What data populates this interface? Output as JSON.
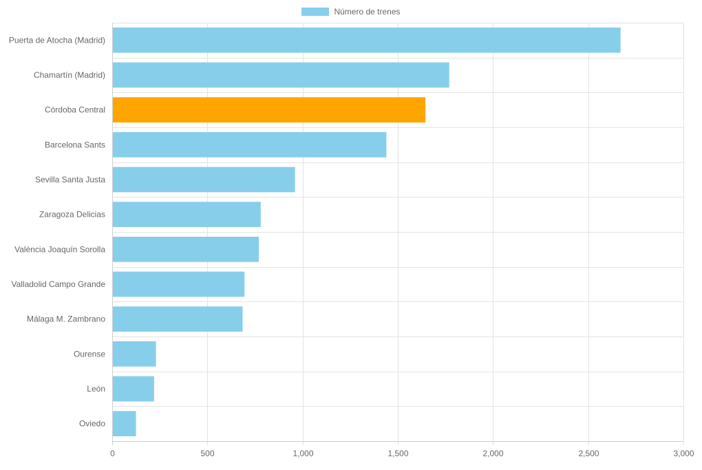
{
  "legend": {
    "label": "Número de trenes",
    "color": "#87ceeb"
  },
  "chart_data": {
    "type": "bar",
    "orientation": "horizontal",
    "categories": [
      "Puerta de Atocha (Madrid)",
      "Chamartín (Madrid)",
      "Córdoba Central",
      "Barcelona Sants",
      "Sevilla Santa Justa",
      "Zaragoza Delicias",
      "València Joaquín Sorolla",
      "Valladolid Campo Grande",
      "Málaga M. Zambrano",
      "Ourense",
      "León",
      "Oviedo"
    ],
    "series": [
      {
        "name": "Número de trenes",
        "values": [
          2670,
          1770,
          1645,
          1440,
          960,
          780,
          770,
          695,
          685,
          230,
          220,
          125
        ]
      }
    ],
    "bar_colors": [
      "#87ceeb",
      "#87ceeb",
      "#ffa500",
      "#87ceeb",
      "#87ceeb",
      "#87ceeb",
      "#87ceeb",
      "#87ceeb",
      "#87ceeb",
      "#87ceeb",
      "#87ceeb",
      "#87ceeb"
    ],
    "highlight_color": "#ffa500",
    "x_ticks": [
      "0",
      "500",
      "1,000",
      "1,500",
      "2,000",
      "2,500",
      "3,000"
    ],
    "xlim": [
      0,
      3000
    ],
    "grid": true,
    "legend_position": "top-center",
    "title": "",
    "xlabel": "",
    "ylabel": ""
  }
}
